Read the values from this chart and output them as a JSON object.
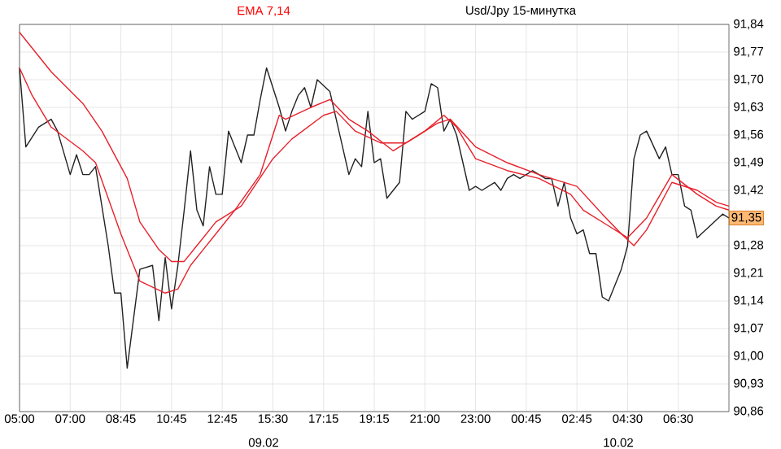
{
  "chart_data": {
    "type": "line",
    "title": "Usd/Jpy 15-минутка",
    "categories": [
      "05:00",
      null,
      null,
      null,
      null,
      null,
      null,
      null,
      "07:00",
      null,
      null,
      null,
      null,
      null,
      null,
      null,
      "08:45",
      null,
      null,
      null,
      null,
      null,
      null,
      null,
      "10:45",
      null,
      null,
      null,
      null,
      null,
      null,
      null,
      "12:45",
      null,
      null,
      null,
      null,
      null,
      null,
      null,
      "15:30",
      null,
      null,
      null,
      null,
      null,
      null,
      null,
      "17:15",
      null,
      null,
      null,
      null,
      null,
      null,
      null,
      "19:15",
      null,
      null,
      null,
      null,
      null,
      null,
      null,
      "21:00",
      null,
      null,
      null,
      null,
      null,
      null,
      null,
      "23:00",
      null,
      null,
      null,
      null,
      null,
      null,
      null,
      "00:45",
      null,
      null,
      null,
      null,
      null,
      null,
      null,
      "02:45",
      null,
      null,
      null,
      null,
      null,
      null,
      null,
      "04:30",
      null,
      null,
      null,
      null,
      null,
      null,
      null,
      "06:30",
      null,
      null,
      null,
      null,
      null,
      null,
      null,
      null
    ],
    "ylim": [
      90.86,
      91.84
    ],
    "yticks": [
      {
        "value": 90.86,
        "label": "90,86"
      },
      {
        "value": 90.93,
        "label": "90,93"
      },
      {
        "value": 91.0,
        "label": "91,00"
      },
      {
        "value": 91.07,
        "label": "91,07"
      },
      {
        "value": 91.14,
        "label": "91,14"
      },
      {
        "value": 91.21,
        "label": "91,21"
      },
      {
        "value": 91.28,
        "label": "91,28"
      },
      {
        "value": 91.35,
        "label": null
      },
      {
        "value": 91.42,
        "label": "91,42"
      },
      {
        "value": 91.49,
        "label": "91,49"
      },
      {
        "value": 91.56,
        "label": "91,56"
      },
      {
        "value": 91.63,
        "label": "91,63"
      },
      {
        "value": 91.7,
        "label": "91,70"
      },
      {
        "value": 91.77,
        "label": "91,77"
      },
      {
        "value": 91.84,
        "label": "91,84"
      }
    ],
    "grid": true,
    "annotations": [
      "EMA 7,14",
      {
        "text": "91,35",
        "y": 91.35
      },
      "09.02",
      "10.02"
    ],
    "series": [
      {
        "color": "#222222",
        "values": [
          91.73,
          91.53,
          null,
          91.58,
          null,
          91.6,
          91.57,
          null,
          91.46,
          91.51,
          91.46,
          91.46,
          91.48,
          91.38,
          91.28,
          91.16,
          91.16,
          90.97,
          null,
          91.22,
          null,
          91.23,
          91.09,
          91.25,
          91.12,
          91.23,
          91.37,
          91.52,
          91.37,
          91.33,
          91.48,
          91.41,
          91.41,
          91.57,
          null,
          91.49,
          91.56,
          91.56,
          91.65,
          91.73,
          91.68,
          91.63,
          91.57,
          91.62,
          91.66,
          91.68,
          91.63,
          91.7,
          null,
          91.67,
          91.6,
          null,
          91.46,
          91.5,
          91.48,
          91.62,
          91.49,
          91.5,
          91.4,
          null,
          91.44,
          91.62,
          91.6,
          null,
          91.62,
          91.69,
          91.68,
          91.57,
          91.6,
          91.56,
          91.49,
          91.42,
          91.43,
          91.42,
          null,
          91.44,
          91.42,
          91.45,
          91.46,
          91.45,
          91.46,
          91.47,
          null,
          91.45,
          91.45,
          91.38,
          91.44,
          91.35,
          91.31,
          91.32,
          91.26,
          91.26,
          91.15,
          91.14,
          null,
          91.22,
          91.28,
          91.5,
          91.56,
          91.57,
          null,
          91.5,
          91.53,
          91.46,
          91.46,
          91.38,
          91.37,
          91.3,
          null,
          91.33,
          null,
          91.36,
          91.35
        ]
      },
      {
        "color": "#e8202a",
        "values": [
          91.73,
          null,
          91.66,
          null,
          null,
          91.58,
          null,
          null,
          null,
          null,
          91.52,
          null,
          91.49,
          null,
          null,
          null,
          91.31,
          null,
          null,
          91.19,
          null,
          null,
          null,
          91.16,
          null,
          91.17,
          null,
          91.23,
          null,
          91.27,
          null,
          null,
          null,
          null,
          91.37,
          null,
          null,
          null,
          91.46,
          null,
          null,
          91.61,
          91.6,
          null,
          null,
          null,
          91.63,
          null,
          null,
          91.65,
          null,
          null,
          91.6,
          null,
          null,
          91.57,
          null,
          null,
          null,
          91.52,
          null,
          null,
          null,
          null,
          91.57,
          null,
          null,
          91.61,
          null,
          91.58,
          null,
          null,
          91.5,
          null,
          null,
          null,
          null,
          91.47,
          null,
          null,
          null,
          null,
          91.45,
          null,
          null,
          null,
          null,
          91.41,
          null,
          91.37,
          null,
          null,
          null,
          91.33,
          null,
          null,
          91.3,
          null,
          null,
          91.35,
          null,
          null,
          null,
          91.46,
          null,
          null,
          null,
          91.41,
          null,
          null,
          91.38,
          null,
          91.37
        ]
      },
      {
        "color": "#e8202a",
        "values": [
          91.82,
          null,
          null,
          null,
          null,
          91.72,
          null,
          null,
          null,
          null,
          91.64,
          null,
          null,
          91.57,
          null,
          null,
          null,
          91.45,
          null,
          91.34,
          null,
          null,
          91.27,
          null,
          91.24,
          null,
          91.24,
          null,
          91.28,
          null,
          null,
          91.34,
          null,
          null,
          null,
          91.38,
          null,
          null,
          null,
          null,
          91.5,
          null,
          null,
          91.55,
          null,
          null,
          null,
          null,
          91.61,
          null,
          91.62,
          null,
          null,
          91.57,
          null,
          null,
          null,
          91.54,
          null,
          null,
          null,
          91.54,
          null,
          null,
          null,
          null,
          91.59,
          null,
          91.6,
          null,
          null,
          null,
          91.53,
          null,
          null,
          null,
          null,
          91.49,
          null,
          null,
          null,
          null,
          91.46,
          null,
          null,
          null,
          null,
          null,
          91.43,
          null,
          null,
          null,
          91.36,
          null,
          null,
          91.31,
          null,
          91.28,
          null,
          91.32,
          null,
          null,
          null,
          91.44,
          null,
          null,
          null,
          91.42,
          null,
          null,
          91.39,
          null,
          91.38
        ]
      }
    ]
  }
}
